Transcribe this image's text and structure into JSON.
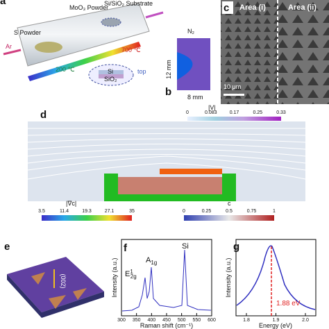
{
  "panel_a": {
    "label": "a",
    "moo3": "MoO₃ Powder",
    "substrate": "Si/SiO₂ Substrate",
    "s_powder": "S Powder",
    "ar": "Ar",
    "t_high": "700 ℃",
    "t_low": "200 ℃",
    "si": "Si",
    "sio2": "SiO₂",
    "top": "top"
  },
  "panel_b": {
    "label": "b",
    "gas": "N₂",
    "height": "12 mm",
    "width": "8 mm"
  },
  "panel_c": {
    "label": "c",
    "area1": "Area (i)",
    "area2": "Area (ii)",
    "scale": "10 μm"
  },
  "panel_d": {
    "label": "d",
    "top_bar_title": "|V|",
    "top_bar_ticks": [
      "0",
      "0.083",
      "0.17",
      "0.25",
      "0.33"
    ],
    "left_bar_title": "|∇c|",
    "left_bar_ticks": [
      "3.5",
      "11.4",
      "19.3",
      "27.1",
      "35"
    ],
    "right_bar_title": "c",
    "right_bar_ticks": [
      "0",
      "0.25",
      "0.5",
      "0.75",
      "1"
    ]
  },
  "panel_e": {
    "label": "e",
    "direction": "(002)"
  },
  "panel_f": {
    "label": "f",
    "peak1": {
      "base": "E",
      "sup": "1",
      "sub": "2g"
    },
    "peak2": {
      "base": "A",
      "sub": "1g"
    },
    "peak3": "Si",
    "ylabel": "Intensity (a.u.)",
    "xlabel": "Raman shift (cm⁻¹)",
    "xticks": [
      "300",
      "350",
      "400",
      "450",
      "500",
      "550",
      "600"
    ]
  },
  "panel_g": {
    "label": "g",
    "peak": "1.88 eV",
    "ylabel": "Intensity (a.u.)",
    "xlabel": "Energy (eV)",
    "xticks": [
      "1.8",
      "1.9",
      "2.0"
    ]
  }
}
